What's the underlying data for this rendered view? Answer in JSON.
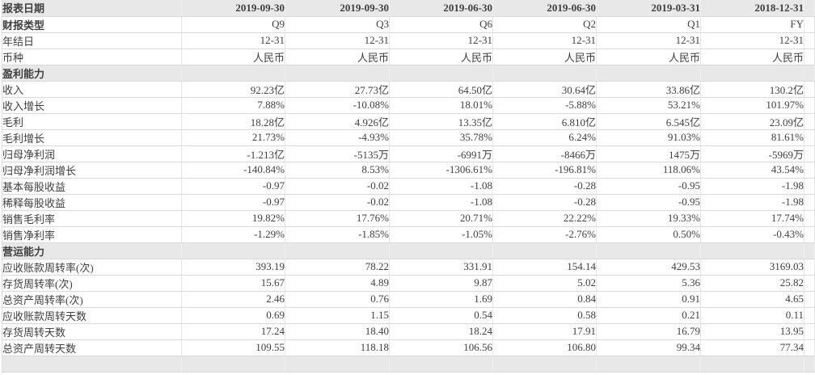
{
  "table": {
    "colors": {
      "band_background": "#e8e8e8",
      "row_border": "#d9d9d9",
      "column_border": "#e4e4e4",
      "text": "#404040"
    },
    "header_row": {
      "label": "报表日期",
      "values": [
        "2019-09-30",
        "2019-09-30",
        "2019-06-30",
        "2019-06-30",
        "2019-03-31",
        "2018-12-31"
      ]
    },
    "meta_rows": [
      {
        "label": "财报类型",
        "bold_label": true,
        "values": [
          "Q9",
          "Q3",
          "Q6",
          "Q2",
          "Q1",
          "FY"
        ]
      },
      {
        "label": "年结日",
        "bold_label": false,
        "values": [
          "12-31",
          "12-31",
          "12-31",
          "12-31",
          "12-31",
          "12-31"
        ]
      },
      {
        "label": "币种",
        "bold_label": false,
        "values": [
          "人民币",
          "人民币",
          "人民币",
          "人民币",
          "人民币",
          "人民币"
        ]
      }
    ],
    "sections": [
      {
        "title": "盈利能力",
        "rows": [
          {
            "label": "收入",
            "values": [
              "92.23亿",
              "27.73亿",
              "64.50亿",
              "30.64亿",
              "33.86亿",
              "130.2亿"
            ]
          },
          {
            "label": "收入增长",
            "values": [
              "7.88%",
              "-10.08%",
              "18.01%",
              "-5.88%",
              "53.21%",
              "101.97%"
            ]
          },
          {
            "label": "毛利",
            "values": [
              "18.28亿",
              "4.926亿",
              "13.35亿",
              "6.810亿",
              "6.545亿",
              "23.09亿"
            ]
          },
          {
            "label": "毛利增长",
            "values": [
              "21.73%",
              "-4.93%",
              "35.78%",
              "6.24%",
              "91.03%",
              "81.61%"
            ]
          },
          {
            "label": "归母净利润",
            "values": [
              "-1.213亿",
              "-5135万",
              "-6991万",
              "-8466万",
              "1475万",
              "-5969万"
            ]
          },
          {
            "label": "归母净利润增长",
            "values": [
              "-140.84%",
              "8.53%",
              "-1306.61%",
              "-196.81%",
              "118.06%",
              "43.54%"
            ]
          },
          {
            "label": "基本每股收益",
            "values": [
              "-0.97",
              "-0.02",
              "-1.08",
              "-0.28",
              "-0.95",
              "-1.98"
            ]
          },
          {
            "label": "稀释每股收益",
            "values": [
              "-0.97",
              "-0.02",
              "-1.08",
              "-0.28",
              "-0.95",
              "-1.98"
            ]
          },
          {
            "label": "销售毛利率",
            "values": [
              "19.82%",
              "17.76%",
              "20.71%",
              "22.22%",
              "19.33%",
              "17.74%"
            ]
          },
          {
            "label": "销售净利率",
            "values": [
              "-1.29%",
              "-1.85%",
              "-1.05%",
              "-2.76%",
              "0.50%",
              "-0.43%"
            ]
          }
        ]
      },
      {
        "title": "营运能力",
        "rows": [
          {
            "label": "应收账款周转率(次)",
            "values": [
              "393.19",
              "78.22",
              "331.91",
              "154.14",
              "429.53",
              "3169.03"
            ]
          },
          {
            "label": "存货周转率(次)",
            "values": [
              "15.67",
              "4.89",
              "9.87",
              "5.02",
              "5.36",
              "25.82"
            ]
          },
          {
            "label": "总资产周转率(次)",
            "values": [
              "2.46",
              "0.76",
              "1.69",
              "0.84",
              "0.91",
              "4.65"
            ]
          },
          {
            "label": "应收账款周转天数",
            "values": [
              "0.69",
              "1.15",
              "0.54",
              "0.58",
              "0.21",
              "0.11"
            ]
          },
          {
            "label": "存货周转天数",
            "values": [
              "17.24",
              "18.40",
              "18.24",
              "17.91",
              "16.79",
              "13.95"
            ]
          },
          {
            "label": "总资产周转天数",
            "values": [
              "109.55",
              "118.18",
              "106.56",
              "106.80",
              "99.34",
              "77.34"
            ]
          }
        ]
      }
    ]
  }
}
